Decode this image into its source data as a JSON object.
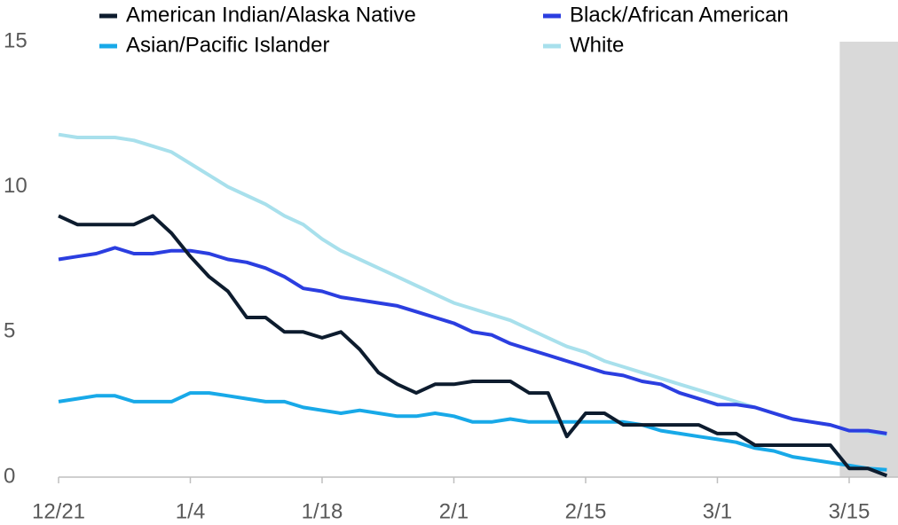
{
  "chart_data": {
    "type": "line",
    "x": [
      "12/21",
      "12/23",
      "12/25",
      "12/27",
      "12/29",
      "12/31",
      "1/2",
      "1/4",
      "1/6",
      "1/8",
      "1/10",
      "1/12",
      "1/14",
      "1/16",
      "1/18",
      "1/20",
      "1/22",
      "1/24",
      "1/26",
      "1/28",
      "1/30",
      "2/1",
      "2/3",
      "2/5",
      "2/7",
      "2/9",
      "2/11",
      "2/13",
      "2/15",
      "2/17",
      "2/19",
      "2/21",
      "2/23",
      "2/25",
      "2/27",
      "3/1",
      "3/3",
      "3/5",
      "3/7",
      "3/9",
      "3/11",
      "3/13",
      "3/15",
      "3/17",
      "3/19"
    ],
    "series": [
      {
        "name": "American Indian/Alaska Native",
        "color": "#0d1c2e",
        "values": [
          9.0,
          8.7,
          8.7,
          8.7,
          8.7,
          9.0,
          8.4,
          7.6,
          6.9,
          6.4,
          5.5,
          5.5,
          5.0,
          5.0,
          4.8,
          5.0,
          4.4,
          3.6,
          3.2,
          2.9,
          3.2,
          3.2,
          3.3,
          3.3,
          3.3,
          2.9,
          2.9,
          1.4,
          2.2,
          2.2,
          1.8,
          1.8,
          1.8,
          1.8,
          1.8,
          1.5,
          1.5,
          1.1,
          1.1,
          1.1,
          1.1,
          1.1,
          0.3,
          0.3,
          0.05
        ]
      },
      {
        "name": "Black/African American",
        "color": "#2b3ee0",
        "values": [
          7.5,
          7.6,
          7.7,
          7.9,
          7.7,
          7.7,
          7.8,
          7.8,
          7.7,
          7.5,
          7.4,
          7.2,
          6.9,
          6.5,
          6.4,
          6.2,
          6.1,
          6.0,
          5.9,
          5.7,
          5.5,
          5.3,
          5.0,
          4.9,
          4.6,
          4.4,
          4.2,
          4.0,
          3.8,
          3.6,
          3.5,
          3.3,
          3.2,
          2.9,
          2.7,
          2.5,
          2.5,
          2.4,
          2.2,
          2.0,
          1.9,
          1.8,
          1.6,
          1.6,
          1.5
        ]
      },
      {
        "name": "Asian/Pacific Islander",
        "color": "#18a9e8",
        "values": [
          2.6,
          2.7,
          2.8,
          2.8,
          2.6,
          2.6,
          2.6,
          2.9,
          2.9,
          2.8,
          2.7,
          2.6,
          2.6,
          2.4,
          2.3,
          2.2,
          2.3,
          2.2,
          2.1,
          2.1,
          2.2,
          2.1,
          1.9,
          1.9,
          2.0,
          1.9,
          1.9,
          1.9,
          1.9,
          1.9,
          1.9,
          1.8,
          1.6,
          1.5,
          1.4,
          1.3,
          1.2,
          1.0,
          0.9,
          0.7,
          0.6,
          0.5,
          0.4,
          0.3,
          0.25
        ]
      },
      {
        "name": "White",
        "color": "#a8e0ec",
        "values": [
          11.8,
          11.7,
          11.7,
          11.7,
          11.6,
          11.4,
          11.2,
          10.8,
          10.4,
          10.0,
          9.7,
          9.4,
          9.0,
          8.7,
          8.2,
          7.8,
          7.5,
          7.2,
          6.9,
          6.6,
          6.3,
          6.0,
          5.8,
          5.6,
          5.4,
          5.1,
          4.8,
          4.5,
          4.3,
          4.0,
          3.8,
          3.6,
          3.4,
          3.2,
          3.0,
          2.8,
          2.6,
          2.4,
          2.2,
          2.0,
          1.9,
          1.8,
          1.6,
          1.55,
          1.45
        ]
      }
    ],
    "xlim": [
      "12/21",
      "3/20"
    ],
    "xticks": [
      "12/21",
      "1/4",
      "1/18",
      "2/1",
      "2/15",
      "3/1",
      "3/15"
    ],
    "ylim": [
      0,
      15
    ],
    "yticks": [
      0,
      5,
      10,
      15
    ],
    "grid": false,
    "shade_start": "3/14",
    "shade_color": "#d9d9d9",
    "legend": "top"
  }
}
